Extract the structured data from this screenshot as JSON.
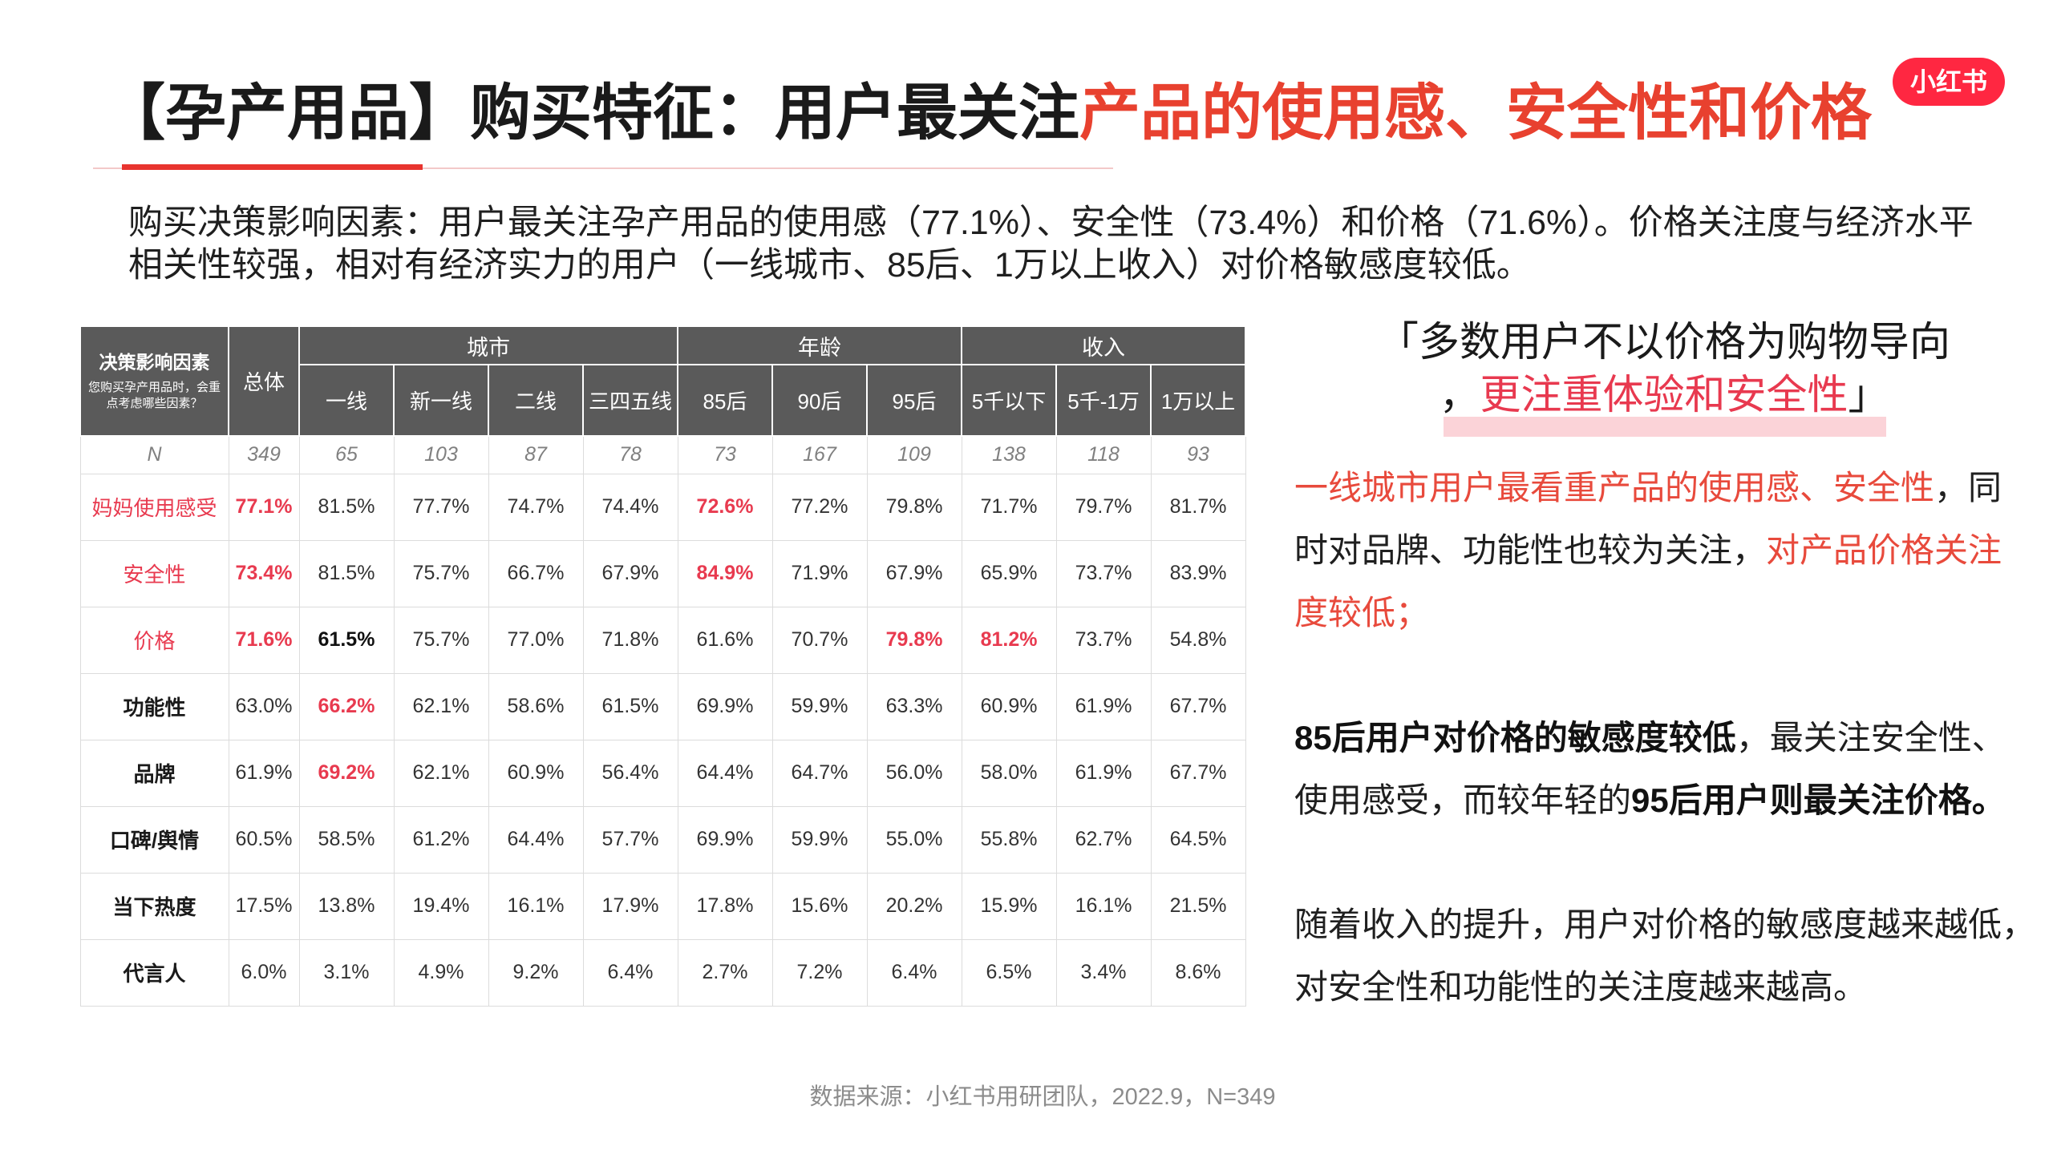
{
  "title": {
    "part1": "【孕产用品】购买特征：用户最关注",
    "part2": "产品的使用感、安全性和价格"
  },
  "logo": {
    "text": "小红书"
  },
  "summary": "购买决策影响因素：用户最关注孕产用品的使用感（77.1%）、安全性（73.4%）和价格（71.6%）。价格关注度与经济水平相关性较强，相对有经济实力的用户（一线城市、85后、1万以上收入）对价格敏感度较低。",
  "table": {
    "corner_title": "决策影响因素",
    "corner_note": "您购买孕产用品时，会重点考虑哪些因素？",
    "total_label": "总体",
    "groups": [
      {
        "label": "城市",
        "columns": [
          "一线",
          "新一线",
          "二线",
          "三四五线"
        ]
      },
      {
        "label": "年龄",
        "columns": [
          "85后",
          "90后",
          "95后"
        ]
      },
      {
        "label": "收入",
        "columns": [
          "5千以下",
          "5千-1万",
          "1万以上"
        ]
      }
    ],
    "n_label": "N",
    "n_values": [
      "349",
      "65",
      "103",
      "87",
      "78",
      "73",
      "167",
      "109",
      "138",
      "118",
      "93"
    ],
    "rows": [
      {
        "label": "妈妈使用感受",
        "label_color": "#e83a4f",
        "values": [
          "77.1%",
          "81.5%",
          "77.7%",
          "74.7%",
          "74.4%",
          "72.6%",
          "77.2%",
          "79.8%",
          "71.7%",
          "79.7%",
          "81.7%"
        ],
        "red_bold": [
          0,
          5
        ],
        "bold": []
      },
      {
        "label": "安全性",
        "label_color": "#e83a4f",
        "values": [
          "73.4%",
          "81.5%",
          "75.7%",
          "66.7%",
          "67.9%",
          "84.9%",
          "71.9%",
          "67.9%",
          "65.9%",
          "73.7%",
          "83.9%"
        ],
        "red_bold": [
          0,
          5
        ],
        "bold": []
      },
      {
        "label": "价格",
        "label_color": "#e83a4f",
        "values": [
          "71.6%",
          "61.5%",
          "75.7%",
          "77.0%",
          "71.8%",
          "61.6%",
          "70.7%",
          "79.8%",
          "81.2%",
          "73.7%",
          "54.8%"
        ],
        "red_bold": [
          0,
          7,
          8
        ],
        "bold": [
          1
        ]
      },
      {
        "label": "功能性",
        "label_bold": true,
        "values": [
          "63.0%",
          "66.2%",
          "62.1%",
          "58.6%",
          "61.5%",
          "69.9%",
          "59.9%",
          "63.3%",
          "60.9%",
          "61.9%",
          "67.7%"
        ],
        "red_bold": [
          1
        ],
        "bold": []
      },
      {
        "label": "品牌",
        "label_bold": true,
        "values": [
          "61.9%",
          "69.2%",
          "62.1%",
          "60.9%",
          "56.4%",
          "64.4%",
          "64.7%",
          "56.0%",
          "58.0%",
          "61.9%",
          "67.7%"
        ],
        "red_bold": [
          1
        ],
        "bold": []
      },
      {
        "label": "口碑/舆情",
        "label_bold": true,
        "values": [
          "60.5%",
          "58.5%",
          "61.2%",
          "64.4%",
          "57.7%",
          "69.9%",
          "59.9%",
          "55.0%",
          "55.8%",
          "62.7%",
          "64.5%"
        ],
        "red_bold": [],
        "bold": []
      },
      {
        "label": "当下热度",
        "label_bold": true,
        "values": [
          "17.5%",
          "13.8%",
          "19.4%",
          "16.1%",
          "17.9%",
          "17.8%",
          "15.6%",
          "20.2%",
          "15.9%",
          "16.1%",
          "21.5%"
        ],
        "red_bold": [],
        "bold": []
      },
      {
        "label": "代言人",
        "label_bold": true,
        "values": [
          "6.0%",
          "3.1%",
          "4.9%",
          "9.2%",
          "6.4%",
          "2.7%",
          "7.2%",
          "6.4%",
          "6.5%",
          "3.4%",
          "8.6%"
        ],
        "red_bold": [],
        "bold": []
      }
    ]
  },
  "quote": {
    "line1": "「多数用户不以价格为购物导向",
    "line2": {
      "lead": "，",
      "highlight": "更注重体验和安全性",
      "close": "」"
    }
  },
  "insights": [
    {
      "segments": [
        {
          "text": "一线城市用户最看重产品的使用感、安全性",
          "color": "#e84a3c"
        },
        {
          "text": "，同时对品牌、功能性也较为关注，"
        },
        {
          "text": "对产品价格关注度较低；",
          "color": "#e84a3c"
        }
      ]
    },
    {
      "segments": [
        {
          "text": "85后用户对价格的敏感度较低",
          "bold": true
        },
        {
          "text": "，最关注安全性、使用感受，而较年轻的"
        },
        {
          "text": "95后用户则最关注价格。",
          "bold": true
        }
      ]
    },
    {
      "segments": [
        {
          "text": "随着收入的提升，用户对价格的敏感度越来越低，对安全性和功能性的关注度越来越高。"
        }
      ]
    }
  ],
  "source": "数据来源：小红书用研团队，2022.9，N=349",
  "colors": {
    "title_red": "#e8412f",
    "brand_red": "#ff2741",
    "table_red": "#e83a4f",
    "body_red": "#e84a3c",
    "quote_red": "#e8394f",
    "header_bg": "#5a5a5a",
    "highlight_pink": "#fbd3d8"
  }
}
